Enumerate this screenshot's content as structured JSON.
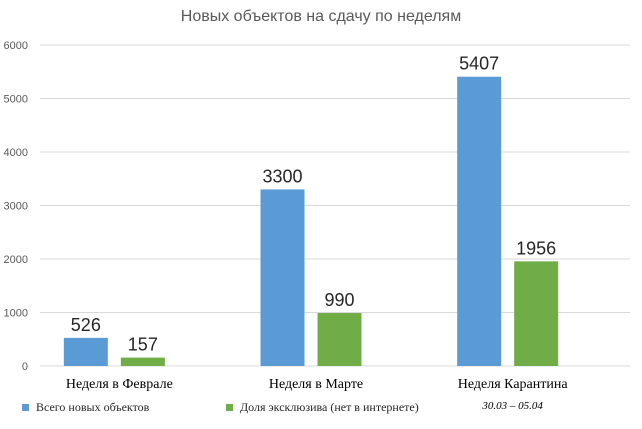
{
  "chart_data": {
    "type": "bar",
    "title": "Новых объектов на сдачу по неделям",
    "categories": [
      "Неделя в Феврале",
      "Неделя в Марте",
      "Неделя Карантина"
    ],
    "category_sublabels": [
      "",
      "",
      "30.03 – 05.04"
    ],
    "highlight_category_color": "#C00000",
    "series": [
      {
        "name": "Всего новых объектов",
        "values": [
          526,
          3300,
          5407
        ],
        "color": "#5B9BD5"
      },
      {
        "name": "Доля эксклюзива (нет в интернете)",
        "values": [
          157,
          990,
          1956
        ],
        "color": "#70AD47"
      }
    ],
    "ylim": [
      0,
      6000
    ],
    "yticks": [
      0,
      1000,
      2000,
      3000,
      4000,
      5000,
      6000
    ],
    "grid": true,
    "legend_position": "bottom"
  }
}
